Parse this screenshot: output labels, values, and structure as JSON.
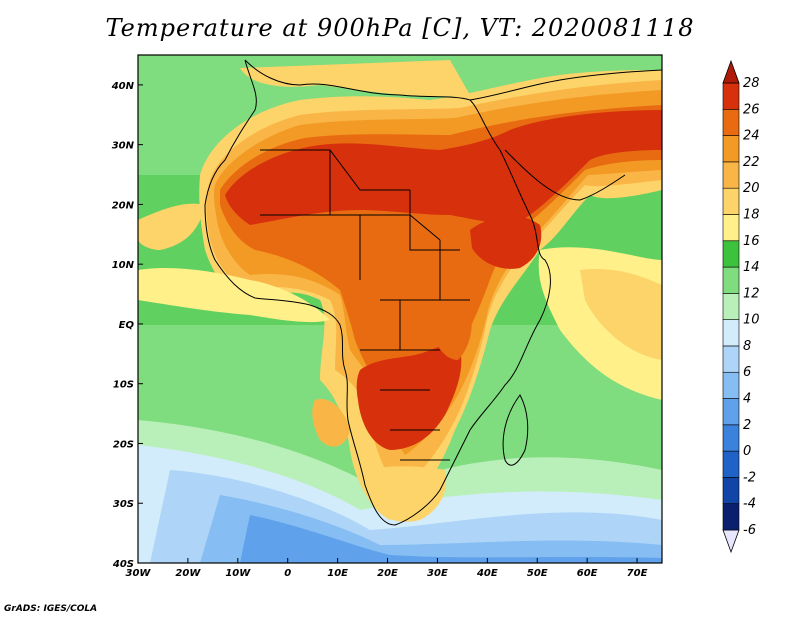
{
  "title": "Temperature at 900hPa [C], VT: 2020081118",
  "credit": "GrADS: IGES/COLA",
  "axes": {
    "lon_ticks": [
      {
        "value": -30,
        "label": "30W"
      },
      {
        "value": -20,
        "label": "20W"
      },
      {
        "value": -10,
        "label": "10W"
      },
      {
        "value": 0,
        "label": "0"
      },
      {
        "value": 10,
        "label": "10E"
      },
      {
        "value": 20,
        "label": "20E"
      },
      {
        "value": 30,
        "label": "30E"
      },
      {
        "value": 40,
        "label": "40E"
      },
      {
        "value": 50,
        "label": "50E"
      },
      {
        "value": 60,
        "label": "60E"
      },
      {
        "value": 70,
        "label": "70E"
      }
    ],
    "lat_ticks": [
      {
        "value": 40,
        "label": "40N"
      },
      {
        "value": 30,
        "label": "30N"
      },
      {
        "value": 20,
        "label": "20N"
      },
      {
        "value": 10,
        "label": "10N"
      },
      {
        "value": 0,
        "label": "EQ"
      },
      {
        "value": -10,
        "label": "10S"
      },
      {
        "value": -20,
        "label": "20S"
      },
      {
        "value": -30,
        "label": "30S"
      },
      {
        "value": -40,
        "label": "40S"
      }
    ],
    "lon_range": [
      -30,
      75
    ],
    "lat_range": [
      -40,
      45
    ]
  },
  "colorbar": {
    "levels": [
      -6,
      -4,
      -2,
      0,
      2,
      4,
      6,
      8,
      10,
      12,
      14,
      16,
      18,
      20,
      22,
      24,
      26,
      28
    ],
    "colors": [
      "#0a1f6e",
      "#1245a8",
      "#1f63c9",
      "#3a82dc",
      "#5fa1ea",
      "#86bdf2",
      "#aed5f7",
      "#d2ecfb",
      "#b9f0b9",
      "#7fdc7f",
      "#3cc23c",
      "#fff08a",
      "#fcd46a",
      "#f9b646",
      "#f29a24",
      "#e86b12",
      "#d6300c",
      "#b01a08"
    ],
    "unit": "C"
  }
}
